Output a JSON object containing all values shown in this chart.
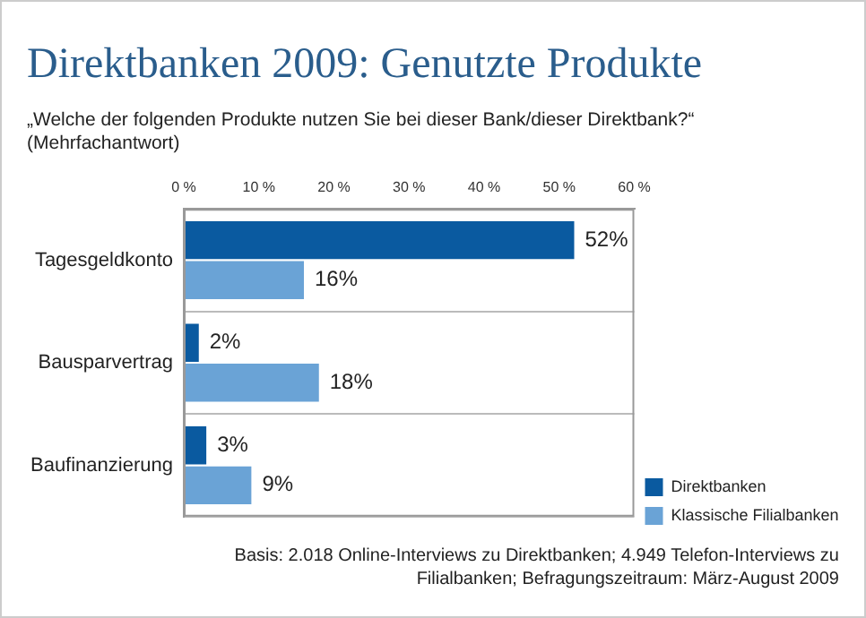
{
  "chart_data": {
    "type": "bar",
    "orientation": "horizontal",
    "title": "Direktbanken 2009: Genutzte Produkte",
    "subtitle": "„Welche der folgenden Produkte nutzen Sie bei dieser Bank/dieser Direktbank?“ (Mehrfachantwort)",
    "categories": [
      "Tagesgeldkonto",
      "Bausparvertrag",
      "Baufinanzierung"
    ],
    "series": [
      {
        "name": "Direktbanken",
        "color": "#0a5aa0",
        "values": [
          52,
          2,
          3
        ],
        "value_labels": [
          "52%",
          "2%",
          "3%"
        ]
      },
      {
        "name": "Klassische Filialbanken",
        "color": "#6aa3d6",
        "values": [
          16,
          18,
          9
        ],
        "value_labels": [
          "16%",
          "18%",
          "9%"
        ]
      }
    ],
    "xlim": [
      0,
      60
    ],
    "xticks": [
      {
        "value": 0,
        "label": "0 %"
      },
      {
        "value": 10,
        "label": "10 %"
      },
      {
        "value": 20,
        "label": "20 %"
      },
      {
        "value": 30,
        "label": "30 %"
      },
      {
        "value": 40,
        "label": "40 %"
      },
      {
        "value": 50,
        "label": "50 %"
      },
      {
        "value": 60,
        "label": "60 %"
      }
    ],
    "grid": "y",
    "legend": "bottom right",
    "annotations": [
      "Basis: 2.018 Online-Interviews zu Direktbanken; 4.949 Telefon-Interviews zu Filialbanken; Befragungszeitraum: März-August 2009"
    ]
  }
}
